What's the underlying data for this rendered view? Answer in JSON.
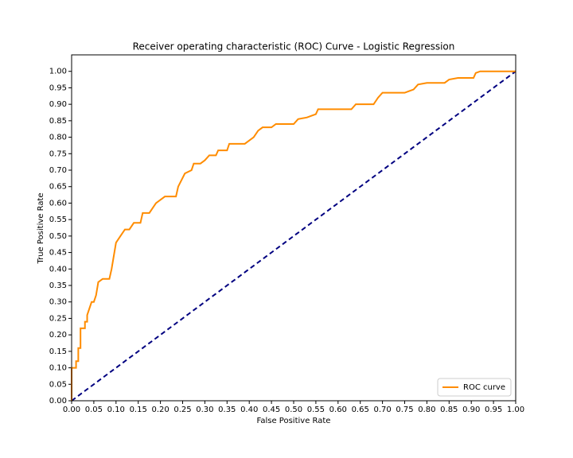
{
  "chart_data": {
    "type": "line",
    "title": "Receiver operating characteristic (ROC) Curve - Logistic Regression",
    "xlabel": "False Positive Rate",
    "ylabel": "True Positive Rate",
    "x": [
      0,
      0,
      0.01,
      0.01,
      0.015,
      0.015,
      0.02,
      0.02,
      0.03,
      0.03,
      0.035,
      0.035,
      0.04,
      0.045,
      0.05,
      0.055,
      0.06,
      0.07,
      0.085,
      0.09,
      0.1,
      0.11,
      0.12,
      0.13,
      0.14,
      0.155,
      0.16,
      0.175,
      0.19,
      0.2,
      0.21,
      0.235,
      0.24,
      0.255,
      0.27,
      0.275,
      0.29,
      0.3,
      0.31,
      0.325,
      0.33,
      0.35,
      0.355,
      0.39,
      0.4,
      0.41,
      0.42,
      0.43,
      0.45,
      0.46,
      0.5,
      0.51,
      0.53,
      0.55,
      0.555,
      0.63,
      0.64,
      0.68,
      0.69,
      0.7,
      0.75,
      0.76,
      0.77,
      0.78,
      0.8,
      0.84,
      0.85,
      0.87,
      0.905,
      0.91,
      0.92,
      1.0
    ],
    "series": [
      {
        "name": "ROC curve",
        "color": "#ff8c00",
        "values": [
          0,
          0.1,
          0.1,
          0.12,
          0.12,
          0.16,
          0.16,
          0.22,
          0.22,
          0.24,
          0.24,
          0.26,
          0.28,
          0.3,
          0.3,
          0.32,
          0.36,
          0.37,
          0.37,
          0.4,
          0.48,
          0.5,
          0.52,
          0.52,
          0.54,
          0.54,
          0.57,
          0.57,
          0.6,
          0.61,
          0.62,
          0.62,
          0.65,
          0.69,
          0.7,
          0.72,
          0.72,
          0.73,
          0.745,
          0.745,
          0.76,
          0.76,
          0.78,
          0.78,
          0.79,
          0.8,
          0.82,
          0.83,
          0.83,
          0.84,
          0.84,
          0.855,
          0.86,
          0.87,
          0.885,
          0.885,
          0.9,
          0.9,
          0.92,
          0.935,
          0.935,
          0.94,
          0.945,
          0.96,
          0.965,
          0.965,
          0.975,
          0.98,
          0.98,
          0.995,
          1.0,
          1.0
        ]
      }
    ],
    "reference_line": {
      "x": [
        0,
        1
      ],
      "values": [
        0,
        1
      ],
      "color": "#000080"
    },
    "xlim": [
      0,
      1
    ],
    "ylim": [
      0,
      1.05
    ],
    "xticks": [
      {
        "value": 0,
        "label": "0.00"
      },
      {
        "value": 0.05,
        "label": "0.05"
      },
      {
        "value": 0.1,
        "label": "0.10"
      },
      {
        "value": 0.15,
        "label": "0.15"
      },
      {
        "value": 0.2,
        "label": "0.20"
      },
      {
        "value": 0.25,
        "label": "0.25"
      },
      {
        "value": 0.3,
        "label": "0.30"
      },
      {
        "value": 0.35,
        "label": "0.35"
      },
      {
        "value": 0.4,
        "label": "0.40"
      },
      {
        "value": 0.45,
        "label": "0.45"
      },
      {
        "value": 0.5,
        "label": "0.50"
      },
      {
        "value": 0.55,
        "label": "0.55"
      },
      {
        "value": 0.6,
        "label": "0.60"
      },
      {
        "value": 0.65,
        "label": "0.65"
      },
      {
        "value": 0.7,
        "label": "0.70"
      },
      {
        "value": 0.75,
        "label": "0.75"
      },
      {
        "value": 0.8,
        "label": "0.80"
      },
      {
        "value": 0.85,
        "label": "0.85"
      },
      {
        "value": 0.9,
        "label": "0.90"
      },
      {
        "value": 0.95,
        "label": "0.95"
      },
      {
        "value": 1,
        "label": "1.00"
      }
    ],
    "yticks": [
      {
        "value": 0,
        "label": "0.00"
      },
      {
        "value": 0.05,
        "label": "0.05"
      },
      {
        "value": 0.1,
        "label": "0.10"
      },
      {
        "value": 0.15,
        "label": "0.15"
      },
      {
        "value": 0.2,
        "label": "0.20"
      },
      {
        "value": 0.25,
        "label": "0.25"
      },
      {
        "value": 0.3,
        "label": "0.30"
      },
      {
        "value": 0.35,
        "label": "0.35"
      },
      {
        "value": 0.4,
        "label": "0.40"
      },
      {
        "value": 0.45,
        "label": "0.45"
      },
      {
        "value": 0.5,
        "label": "0.50"
      },
      {
        "value": 0.55,
        "label": "0.55"
      },
      {
        "value": 0.6,
        "label": "0.60"
      },
      {
        "value": 0.65,
        "label": "0.65"
      },
      {
        "value": 0.7,
        "label": "0.70"
      },
      {
        "value": 0.75,
        "label": "0.75"
      },
      {
        "value": 0.8,
        "label": "0.80"
      },
      {
        "value": 0.85,
        "label": "0.85"
      },
      {
        "value": 0.9,
        "label": "0.90"
      },
      {
        "value": 0.95,
        "label": "0.95"
      },
      {
        "value": 1,
        "label": "1.00"
      }
    ],
    "legend": "lower right",
    "grid": false
  }
}
